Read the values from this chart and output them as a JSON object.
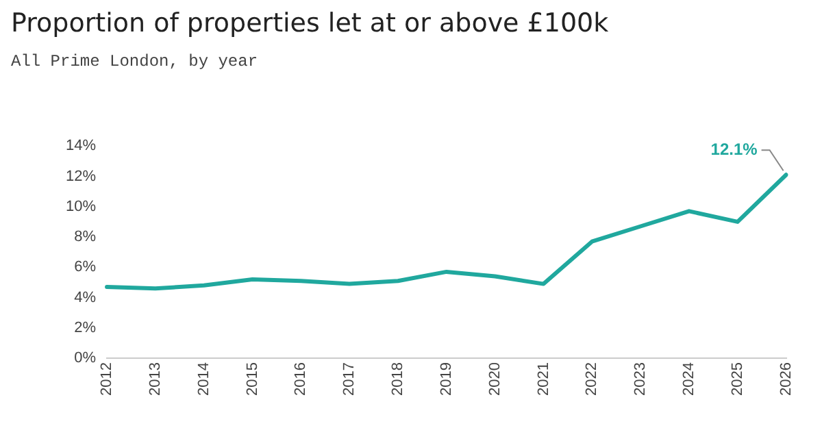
{
  "chart_data": {
    "type": "line",
    "title": "Proportion of properties let at or above £100k",
    "subtitle": "All Prime London, by year",
    "categories": [
      "2012",
      "2013",
      "2014",
      "2015",
      "2016",
      "2017",
      "2018",
      "2019",
      "2020",
      "2021",
      "2022",
      "2023",
      "2024",
      "2025",
      "2026"
    ],
    "series": [
      {
        "color": "#20a89e",
        "values": [
          4.7,
          4.6,
          4.8,
          5.2,
          5.1,
          4.9,
          5.1,
          5.7,
          5.4,
          4.9,
          7.7,
          8.7,
          9.7,
          9.0,
          12.1
        ]
      }
    ],
    "ylim": [
      0,
      14
    ],
    "yticks": [
      {
        "value": 0,
        "label": "0%"
      },
      {
        "value": 2,
        "label": "2%"
      },
      {
        "value": 4,
        "label": "4%"
      },
      {
        "value": 6,
        "label": "6%"
      },
      {
        "value": 8,
        "label": "8%"
      },
      {
        "value": 10,
        "label": "10%"
      },
      {
        "value": 12,
        "label": "12%"
      },
      {
        "value": 14,
        "label": "14%"
      }
    ],
    "annotations": [
      {
        "text": "12.1%",
        "x": "2026",
        "y": 12.1
      }
    ],
    "grid": false,
    "legend": false,
    "marker": "none",
    "line_style": "solid"
  }
}
